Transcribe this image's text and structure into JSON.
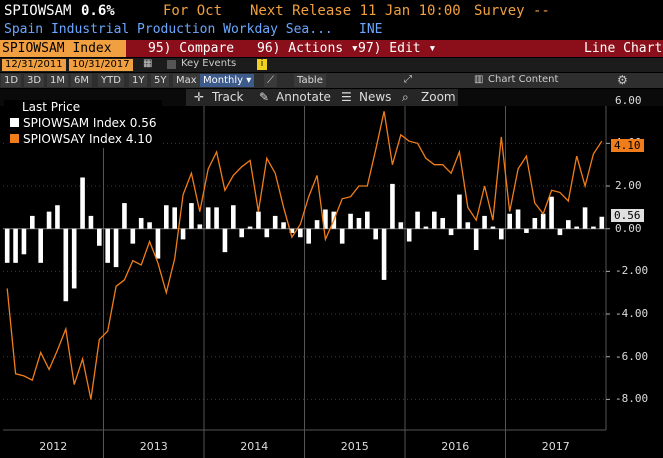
{
  "header": {
    "ticker": "SPIOWSAM",
    "value": "0.6%",
    "for_label": "For Oct",
    "next_release": "Next Release 11 Jan 10:00",
    "survey": "Survey --",
    "description": "Spain Industrial Production Workday Sea...",
    "source": "INE"
  },
  "menubar": {
    "security": "SPIOWSAM Index",
    "compare": "95) Compare",
    "actions": "96) Actions ▾",
    "edit": "97) Edit ▾",
    "chart_type": "Line Chart"
  },
  "datebar": {
    "start": "12/31/2011",
    "end": "10/31/2017",
    "key_events": "Key Events"
  },
  "rangebar": {
    "tabs": [
      "1D",
      "3D",
      "1M",
      "6M",
      "YTD",
      "1Y",
      "5Y",
      "Max"
    ],
    "frequency": "Monthly ▾",
    "table": "Table",
    "chart_content": "Chart Content"
  },
  "tools": {
    "track": "Track",
    "annotate": "Annotate",
    "news": "News",
    "zoom": "Zoom"
  },
  "legend": {
    "title": "Last Price",
    "item1": "SPIOWSAM Index 0.56",
    "item2": "SPIOWSAY Index 4.10"
  },
  "tags": {
    "yoy": "4.10",
    "mom": "0.56"
  },
  "colors": {
    "mom": "#ffffff",
    "yoy": "#f07d1a",
    "accent": "#f0a040",
    "menubar": "#8a0f1a"
  },
  "chart_data": {
    "type": "bar",
    "x_start": "2012-01",
    "x_end": "2017-10",
    "ylim": [
      -9.2,
      6.5
    ],
    "yticks": [
      "6.00",
      "4.00",
      "2.00",
      "0.00",
      "-2.00",
      "-4.00",
      "-6.00",
      "-8.00"
    ],
    "year_labels": [
      "2012",
      "2013",
      "2014",
      "2015",
      "2016",
      "2017"
    ],
    "series": [
      {
        "name": "SPIOWSAM Index",
        "kind": "bar",
        "values": [
          -1.6,
          -1.6,
          -1.2,
          0.6,
          -1.6,
          0.8,
          1.1,
          -3.4,
          -2.8,
          2.4,
          0.6,
          -0.8,
          -1.6,
          -1.8,
          1.2,
          -0.7,
          0.5,
          0.3,
          -1.4,
          1.1,
          1.0,
          -0.5,
          1.2,
          0.2,
          1.0,
          1.0,
          -1.1,
          1.1,
          -0.4,
          0.1,
          0.8,
          -0.4,
          0.6,
          0.3,
          -0.2,
          -0.4,
          -0.7,
          0.4,
          0.9,
          0.8,
          -0.7,
          0.7,
          0.5,
          0.8,
          -0.5,
          -2.4,
          2.1,
          0.3,
          -0.6,
          0.8,
          0.1,
          0.8,
          0.5,
          -0.3,
          1.6,
          0.3,
          -1.0,
          0.6,
          0.1,
          -0.5,
          0.7,
          0.9,
          -0.2,
          0.5,
          0.7,
          1.5,
          -0.3,
          0.4,
          0.1,
          1.0,
          0.1,
          0.56
        ]
      },
      {
        "name": "SPIOWSAY Index",
        "kind": "line",
        "values": [
          -2.8,
          -6.8,
          -6.9,
          -7.1,
          -5.8,
          -6.6,
          -5.7,
          -4.7,
          -7.3,
          -6.1,
          -8.0,
          -5.2,
          -4.8,
          -2.7,
          -2.4,
          -1.5,
          -1.7,
          -0.6,
          -1.6,
          -3.0,
          -1.4,
          1.6,
          2.6,
          0.8,
          2.8,
          3.6,
          1.8,
          2.5,
          2.9,
          3.2,
          0.8,
          3.3,
          2.6,
          1.0,
          -0.4,
          0.2,
          1.5,
          2.5,
          -0.5,
          0.4,
          1.4,
          1.5,
          2.0,
          2.0,
          3.7,
          5.5,
          3.0,
          4.4,
          4.1,
          4.0,
          3.3,
          3.0,
          3.0,
          2.6,
          3.6,
          1.0,
          0.4,
          2.0,
          0.4,
          4.3,
          0.8,
          2.8,
          3.4,
          1.2,
          0.7,
          1.8,
          1.7,
          1.3,
          3.4,
          2.0,
          3.5,
          4.1
        ]
      }
    ]
  }
}
